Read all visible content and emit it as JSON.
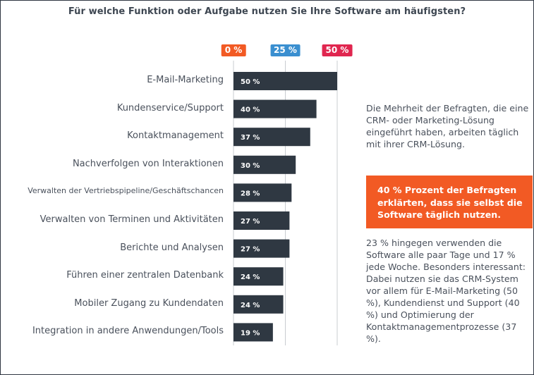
{
  "chart_data": {
    "type": "bar",
    "orientation": "horizontal",
    "title": "Für welche Funktion oder Aufgabe nutzen Sie Ihre Software am häufigsten?",
    "categories": [
      "E-Mail-Marketing",
      "Kundenservice/Support",
      "Kontaktmanagement",
      "Nachverfolgen von Interaktionen",
      "Verwalten der Vertriebspipeline/Geschäftschancen",
      "Verwalten von Terminen und Aktivitäten",
      "Berichte und Analysen",
      "Führen einer zentralen Datenbank",
      "Mobiler Zugang zu Kundendaten",
      "Integration in andere Anwendungen/Tools"
    ],
    "values": [
      50,
      40,
      37,
      30,
      28,
      27,
      27,
      24,
      24,
      19
    ],
    "value_labels": [
      "50 %",
      "40 %",
      "37 %",
      "30 %",
      "28 %",
      "27 %",
      "27 %",
      "24 %",
      "24 %",
      "19 %"
    ],
    "xlim": [
      0,
      50
    ],
    "ticks": [
      {
        "value": 0,
        "label": "0 %",
        "color": "#f25a24"
      },
      {
        "value": 25,
        "label": "25 %",
        "color": "#3a8fd0"
      },
      {
        "value": 50,
        "label": "50 %",
        "color": "#e0264f"
      }
    ],
    "bar_color": "#2f3842",
    "grid": true
  },
  "side": {
    "para1": "Die Mehrheit der Befragten, die eine CRM- oder Marketing-Lösung eingeführt haben, arbeiten täglich mit ihrer CRM-Lösung.",
    "callout": "40 % Prozent der Befragten erklärten, dass sie selbst die Software täglich nutzen.",
    "para2": "23 % hingegen verwenden die Software alle paar Tage und 17 % jede Woche. Besonders interessant: Dabei nutzen sie das CRM-System vor allem für E-Mail-Marketing (50 %), Kundendienst und Support (40 %) und Optimierung der Kontaktmanagementprozesse (37 %).",
    "callout_color": "#f25a24"
  }
}
